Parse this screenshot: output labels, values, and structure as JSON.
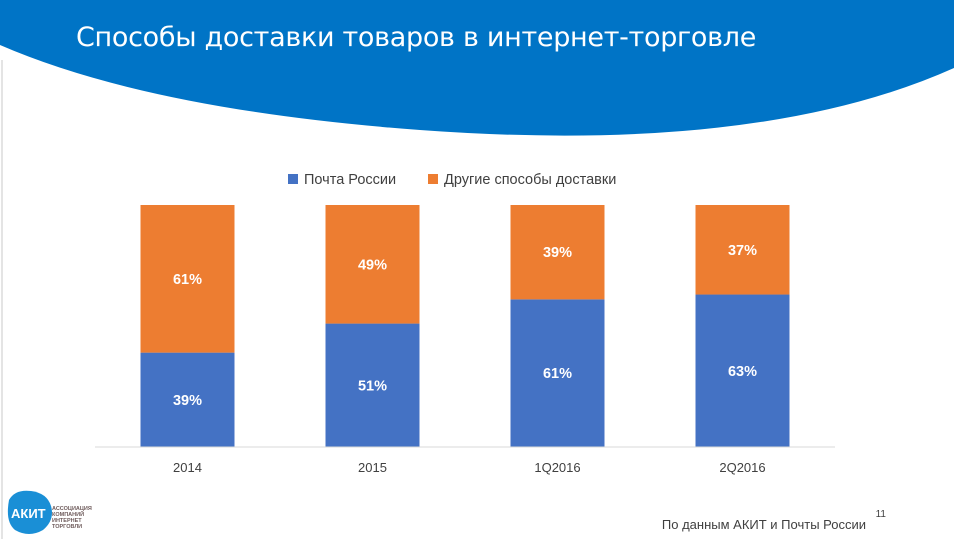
{
  "slide": {
    "title": "Способы доставки товаров в интернет-торговле",
    "source": "По данным АКИТ и Почты России",
    "page_number": "11",
    "logo": {
      "mark": "АКИТ",
      "lines": [
        "Ассоциация",
        "компаний",
        "интернет",
        "торговли"
      ]
    },
    "colors": {
      "header_blue": "#0074C6"
    }
  },
  "chart_data": {
    "type": "bar",
    "stacked": true,
    "categories": [
      "2014",
      "2015",
      "1Q2016",
      "2Q2016"
    ],
    "series": [
      {
        "name": "Почта России",
        "color": "#4472C4",
        "values": [
          39,
          51,
          61,
          63
        ],
        "labels": [
          "39%",
          "51%",
          "61%",
          "63%"
        ]
      },
      {
        "name": "Другие способы доставки",
        "color": "#ED7D31",
        "values": [
          61,
          49,
          39,
          37
        ],
        "labels": [
          "61%",
          "49%",
          "39%",
          "37%"
        ]
      }
    ],
    "ylim": [
      0,
      100
    ],
    "legend": "top",
    "grid": false
  }
}
